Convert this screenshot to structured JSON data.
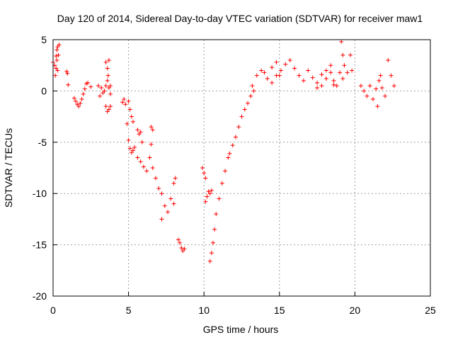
{
  "chart_data": {
    "type": "scatter",
    "title": "Day 120 of 2014, Sidereal Day-to-day VTEC variation (SDTVAR) for receiver maw1",
    "xlabel": "GPS time / hours",
    "ylabel": "SDTVAR / TECUs",
    "xlim": [
      0,
      25
    ],
    "ylim": [
      -20,
      5
    ],
    "xticks": [
      0,
      5,
      10,
      15,
      20,
      25
    ],
    "yticks": [
      5,
      0,
      -5,
      -10,
      -15,
      -20
    ],
    "xtick_labels": [
      "0",
      "5",
      "10",
      "15",
      "20",
      "25"
    ],
    "ytick_labels": [
      "5",
      "0",
      "-5",
      "-10",
      "-15",
      "-20"
    ],
    "grid": true,
    "marker": "+",
    "marker_color": "#ff0000",
    "series": [
      {
        "name": "SDTVAR",
        "segments": [
          {
            "x": [
              0.0,
              0.1,
              0.2,
              0.25,
              0.3,
              0.35,
              0.4
            ],
            "y": [
              2.8,
              2.5,
              3.4,
              4.0,
              4.3,
              3.5,
              4.5
            ]
          },
          {
            "x": [
              0.15,
              0.2,
              0.25,
              0.3
            ],
            "y": [
              1.5,
              2.2,
              3.0,
              2.0
            ]
          },
          {
            "x": [
              0.9,
              0.95,
              1.0
            ],
            "y": [
              1.9,
              1.7,
              0.6
            ]
          },
          {
            "x": [
              1.4,
              1.5,
              1.6,
              1.7,
              1.8,
              1.9,
              2.0,
              2.1,
              2.2
            ],
            "y": [
              -0.7,
              -1.0,
              -1.3,
              -1.5,
              -1.2,
              -0.8,
              -0.3,
              0.2,
              0.7
            ]
          },
          {
            "x": [
              2.3,
              2.5
            ],
            "y": [
              0.8,
              0.4
            ]
          },
          {
            "x": [
              3.0,
              3.1,
              3.2,
              3.3,
              3.4,
              3.5,
              3.6,
              3.7,
              3.8
            ],
            "y": [
              0.5,
              -0.5,
              0.3,
              -0.2,
              0.0,
              0.5,
              1.0,
              0.3,
              -0.3
            ]
          },
          {
            "x": [
              3.5,
              3.6,
              3.65,
              3.7,
              3.8
            ],
            "y": [
              2.8,
              2.2,
              1.5,
              3.0,
              0.5
            ]
          },
          {
            "x": [
              3.5,
              3.6,
              3.7,
              3.8
            ],
            "y": [
              -1.5,
              -2.0,
              -1.8,
              -1.5
            ]
          },
          {
            "x": [
              4.6,
              4.7,
              4.8
            ],
            "y": [
              -1.1,
              -0.8,
              -1.3
            ]
          },
          {
            "x": [
              4.9,
              5.0,
              5.1,
              5.2,
              5.3
            ],
            "y": [
              -3.2,
              -4.8,
              -5.6,
              -6.0,
              -5.8
            ]
          },
          {
            "x": [
              5.0,
              5.1,
              5.2,
              5.3
            ],
            "y": [
              -1.0,
              -1.8,
              -2.5,
              -3.0
            ]
          },
          {
            "x": [
              5.4,
              5.6,
              5.8,
              6.0,
              6.2,
              6.4,
              6.5
            ],
            "y": [
              -5.5,
              -6.5,
              -6.9,
              -7.4,
              -7.8,
              -6.5,
              -5.2
            ]
          },
          {
            "x": [
              5.6,
              5.7,
              5.8,
              5.9
            ],
            "y": [
              -3.8,
              -4.2,
              -4.0,
              -5.0
            ]
          },
          {
            "x": [
              6.6,
              6.8,
              7.0,
              7.2
            ],
            "y": [
              -7.5,
              -8.5,
              -9.5,
              -10.0
            ]
          },
          {
            "x": [
              6.5,
              6.6
            ],
            "y": [
              -3.5,
              -3.8
            ]
          },
          {
            "x": [
              7.2,
              7.4,
              7.6,
              7.8,
              8.0
            ],
            "y": [
              -12.5,
              -11.2,
              -11.8,
              -10.5,
              -11.0
            ]
          },
          {
            "x": [
              8.0,
              8.1
            ],
            "y": [
              -9.0,
              -8.5
            ]
          },
          {
            "x": [
              8.3,
              8.4,
              8.5,
              8.6,
              8.7
            ],
            "y": [
              -14.5,
              -14.8,
              -15.3,
              -15.6,
              -15.4
            ]
          },
          {
            "x": [
              9.9,
              10.0,
              10.1
            ],
            "y": [
              -7.5,
              -8.0,
              -8.5
            ]
          },
          {
            "x": [
              10.1,
              10.2,
              10.3,
              10.4,
              10.5
            ],
            "y": [
              -10.8,
              -10.3,
              -9.8,
              -10.0,
              -9.7
            ]
          },
          {
            "x": [
              10.4,
              10.5,
              10.6,
              10.7,
              10.8,
              11.0,
              11.2,
              11.4,
              11.6
            ],
            "y": [
              -16.6,
              -15.8,
              -14.8,
              -13.5,
              -12.0,
              -10.5,
              -9.0,
              -7.8,
              -6.5
            ]
          },
          {
            "x": [
              11.7,
              11.9,
              12.1,
              12.3,
              12.5,
              12.7,
              12.9,
              13.1,
              13.3
            ],
            "y": [
              -6.1,
              -5.3,
              -4.5,
              -3.5,
              -2.5,
              -1.8,
              -1.2,
              -0.5,
              0.0
            ]
          },
          {
            "x": [
              13.2,
              13.5,
              13.8,
              14.0,
              14.2,
              14.5,
              14.8,
              15.0
            ],
            "y": [
              0.5,
              1.5,
              2.0,
              1.8,
              1.2,
              2.3,
              2.8,
              1.5
            ]
          },
          {
            "x": [
              14.5,
              14.8,
              15.1,
              15.4,
              15.7,
              16.0,
              16.3,
              16.6,
              16.9,
              17.2,
              17.5,
              17.8,
              18.1,
              18.4,
              18.6
            ],
            "y": [
              0.8,
              1.5,
              2.0,
              2.6,
              3.0,
              2.2,
              1.5,
              1.0,
              2.0,
              1.3,
              0.8,
              1.6,
              1.2,
              1.8,
              0.6
            ]
          },
          {
            "x": [
              17.5,
              17.8,
              18.1,
              18.4
            ],
            "y": [
              0.3,
              0.5,
              2.0,
              2.5
            ]
          },
          {
            "x": [
              18.6,
              18.8,
              19.0,
              19.2
            ],
            "y": [
              1.0,
              0.5,
              1.8,
              1.2
            ]
          },
          {
            "x": [
              19.1,
              19.2
            ],
            "y": [
              4.8,
              3.5
            ]
          },
          {
            "x": [
              19.3,
              19.5,
              19.7,
              19.8
            ],
            "y": [
              2.5,
              1.8,
              3.5,
              2.0
            ]
          },
          {
            "x": [
              20.4,
              20.6,
              20.8,
              21.0,
              21.2,
              21.4,
              21.6,
              21.8,
              22.0
            ],
            "y": [
              0.5,
              0.0,
              -0.5,
              0.5,
              -0.8,
              0.2,
              1.0,
              0.3,
              -0.5
            ]
          },
          {
            "x": [
              21.5,
              21.7
            ],
            "y": [
              -1.5,
              1.5
            ]
          },
          {
            "x": [
              22.2,
              22.4,
              22.6
            ],
            "y": [
              3.0,
              1.5,
              0.5
            ]
          }
        ]
      }
    ]
  }
}
